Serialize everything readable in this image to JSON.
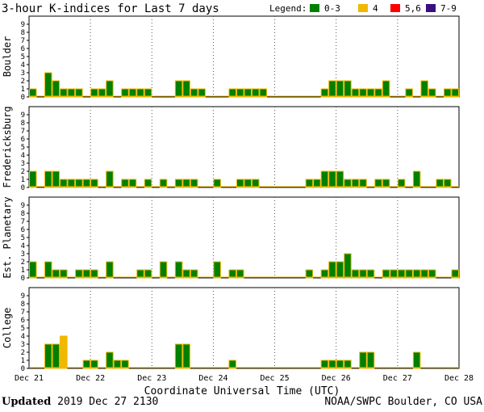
{
  "chart_data": {
    "type": "bar",
    "title": "3-hour K-indices for Last 7 days",
    "legend": {
      "label": "Legend:",
      "position": "top-right",
      "items": [
        {
          "label": "0-3",
          "color": "#008000"
        },
        {
          "label": "4",
          "color": "#f0b800"
        },
        {
          "label": "5,6",
          "color": "#ff0000"
        },
        {
          "label": "7-9",
          "color": "#3a0f80"
        }
      ]
    },
    "bar_edge_color": "#f0b800",
    "grid": true,
    "ylim": [
      0,
      9
    ],
    "yticks": [
      "0",
      "1",
      "2",
      "3",
      "4",
      "5",
      "6",
      "7",
      "8",
      "9"
    ],
    "xlabel": "Coordinate Universal Time (UTC)",
    "xticks": [
      "Dec 21",
      "Dec 22",
      "Dec 23",
      "Dec 24",
      "Dec 25",
      "Dec 26",
      "Dec 27",
      "Dec 28"
    ],
    "bins_per_day": 8,
    "panels": [
      {
        "name": "Boulder",
        "values": [
          1,
          0,
          3,
          2,
          1,
          1,
          1,
          0,
          1,
          1,
          2,
          0,
          1,
          1,
          1,
          1,
          0,
          0,
          0,
          2,
          2,
          1,
          1,
          0,
          0,
          0,
          1,
          1,
          1,
          1,
          1,
          0,
          0,
          0,
          0,
          0,
          0,
          0,
          1,
          2,
          2,
          2,
          1,
          1,
          1,
          1,
          2,
          0,
          0,
          1,
          0,
          2,
          1,
          0,
          1,
          1
        ]
      },
      {
        "name": "Fredericksburg",
        "values": [
          2,
          0,
          2,
          2,
          1,
          1,
          1,
          1,
          1,
          0,
          2,
          0,
          1,
          1,
          0,
          1,
          0,
          1,
          0,
          1,
          1,
          1,
          0,
          0,
          1,
          0,
          0,
          1,
          1,
          1,
          0,
          0,
          0,
          0,
          0,
          0,
          1,
          1,
          2,
          2,
          2,
          1,
          1,
          1,
          0,
          1,
          1,
          0,
          1,
          0,
          2,
          0,
          0,
          1,
          1,
          0
        ]
      },
      {
        "name": "Est. Planetary",
        "values": [
          2,
          0,
          2,
          1,
          1,
          0,
          1,
          1,
          1,
          0,
          2,
          0,
          0,
          0,
          1,
          1,
          0,
          2,
          0,
          2,
          1,
          1,
          0,
          0,
          2,
          0,
          1,
          1,
          0,
          0,
          0,
          0,
          0,
          0,
          0,
          0,
          1,
          0,
          1,
          2,
          2,
          3,
          1,
          1,
          1,
          0,
          1,
          1,
          1,
          1,
          1,
          1,
          1,
          0,
          0,
          1
        ]
      },
      {
        "name": "College",
        "values": [
          0,
          0,
          3,
          3,
          4,
          0,
          0,
          1,
          1,
          0,
          2,
          1,
          1,
          0,
          0,
          0,
          0,
          0,
          0,
          3,
          3,
          0,
          0,
          0,
          0,
          0,
          1,
          0,
          0,
          0,
          0,
          0,
          0,
          0,
          0,
          0,
          0,
          0,
          1,
          1,
          1,
          1,
          0,
          2,
          2,
          0,
          0,
          0,
          0,
          0,
          2,
          0,
          0,
          0,
          0,
          0
        ]
      }
    ]
  },
  "footer": {
    "updated_label": "Updated",
    "updated_value": "2019 Dec 27 2130",
    "credit": "NOAA/SWPC Boulder, CO USA"
  }
}
